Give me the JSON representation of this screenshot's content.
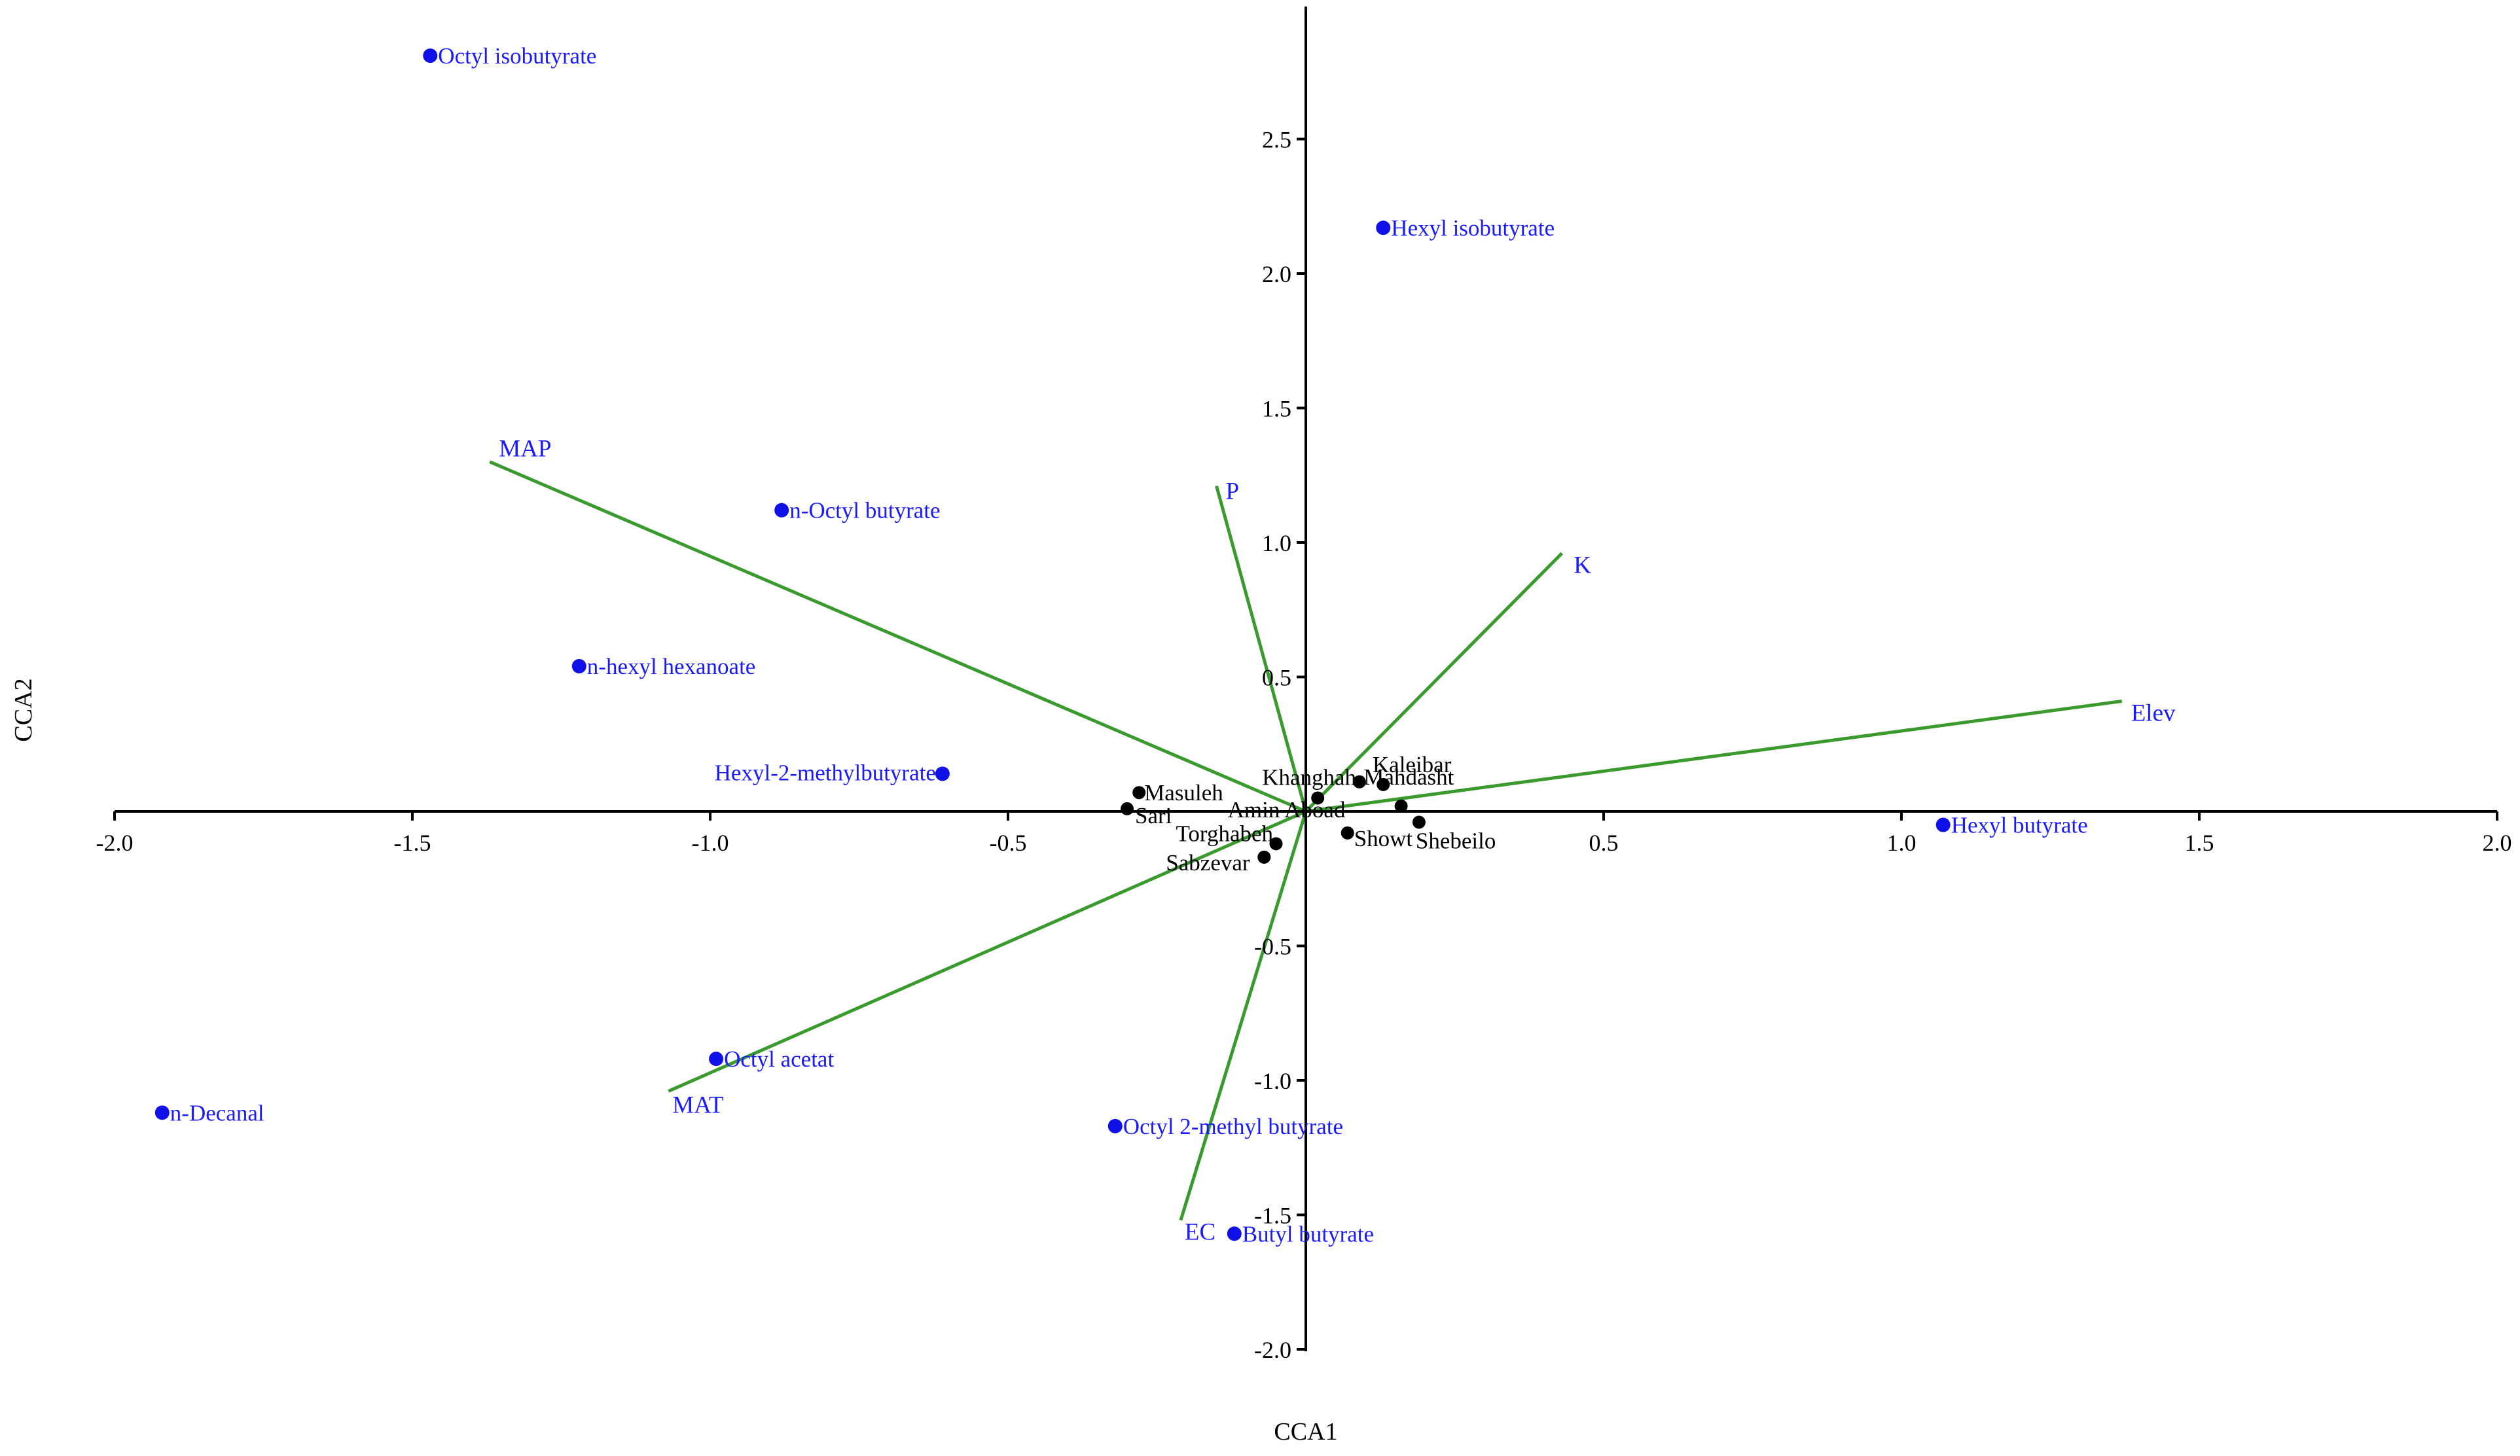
{
  "chart_data": {
    "type": "scatter",
    "xlabel": "CCA1",
    "ylabel": "CCA2",
    "xlim": [
      -2.0,
      2.0
    ],
    "ylim": [
      -2.0,
      3.0
    ],
    "x_ticks": [
      "-2.0",
      "-1.5",
      "-1.0",
      "-0.5",
      "0.5",
      "1.0",
      "1.5",
      "2.0"
    ],
    "y_ticks": [
      "-2.0",
      "-1.5",
      "-1.0",
      "-0.5",
      "0.5",
      "1.0",
      "1.5",
      "2.0",
      "2.5"
    ],
    "environmental_vectors": [
      {
        "label": "MAP",
        "x": -1.37,
        "y": 1.3
      },
      {
        "label": "P",
        "x": -0.15,
        "y": 1.21
      },
      {
        "label": "K",
        "x": 0.43,
        "y": 0.96
      },
      {
        "label": "Elev",
        "x": 1.37,
        "y": 0.41
      },
      {
        "label": "MAT",
        "x": -1.07,
        "y": -1.04
      },
      {
        "label": "EC",
        "x": -0.21,
        "y": -1.52
      }
    ],
    "species": [
      {
        "label": "Octyl isobutyrate",
        "x": -1.47,
        "y": 2.81
      },
      {
        "label": "Hexyl isobutyrate",
        "x": 0.13,
        "y": 2.17
      },
      {
        "label": "n-Octyl butyrate",
        "x": -0.88,
        "y": 1.12
      },
      {
        "label": "n-hexyl hexanoate",
        "x": -1.22,
        "y": 0.54
      },
      {
        "label": "Hexyl-2-methylbutyrate",
        "x": -0.61,
        "y": 0.14
      },
      {
        "label": "Hexyl butyrate",
        "x": 1.07,
        "y": -0.05
      },
      {
        "label": "Octyl acetat",
        "x": -0.99,
        "y": -0.92
      },
      {
        "label": "n-Decanal",
        "x": -1.92,
        "y": -1.12
      },
      {
        "label": "Octyl 2-methyl butyrate",
        "x": -0.32,
        "y": -1.17
      },
      {
        "label": "Butyl butyrate",
        "x": -0.12,
        "y": -1.57
      }
    ],
    "sites": [
      {
        "label": "Masuleh",
        "x": -0.28,
        "y": 0.07
      },
      {
        "label": "Sari",
        "x": -0.3,
        "y": 0.01
      },
      {
        "label": "Khanghah",
        "x": 0.02,
        "y": 0.05
      },
      {
        "label": "Kaleibar",
        "x": 0.09,
        "y": 0.11
      },
      {
        "label": "Mahdasht",
        "x": 0.13,
        "y": 0.1
      },
      {
        "label": "Amin Aboad",
        "x": 0.16,
        "y": 0.02
      },
      {
        "label": "Torghabeh",
        "x": -0.05,
        "y": -0.12
      },
      {
        "label": "Sabzevar",
        "x": -0.07,
        "y": -0.17
      },
      {
        "label": "Showt",
        "x": 0.07,
        "y": -0.08
      },
      {
        "label": "Shebeilo",
        "x": 0.19,
        "y": -0.04
      }
    ]
  },
  "colors": {
    "vector": "#3a9a2e",
    "species": "#1010e8",
    "site": "#000000",
    "axis": "#000000"
  }
}
